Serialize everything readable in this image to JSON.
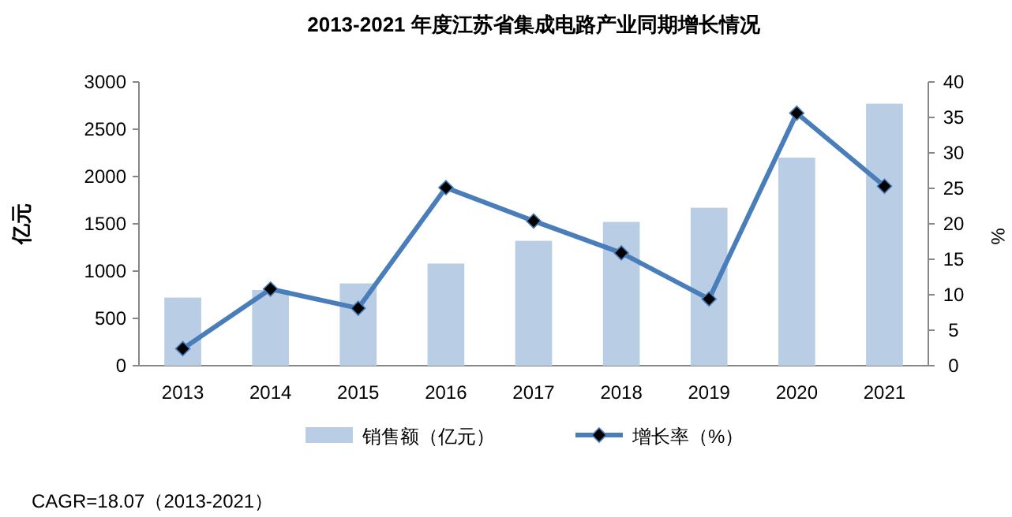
{
  "chart_data": {
    "type": "bar",
    "title": "2013-2021 年度江苏省集成电路产业同期增长情况",
    "categories": [
      "2013",
      "2014",
      "2015",
      "2016",
      "2017",
      "2018",
      "2019",
      "2020",
      "2021"
    ],
    "series": [
      {
        "name": "销售额（亿元）",
        "color": "#b9cde5",
        "values": [
          720,
          800,
          870,
          1080,
          1320,
          1520,
          1670,
          2200,
          2770
        ]
      },
      {
        "name": "增长率（%）",
        "type": "line",
        "axis": "y2",
        "color": "#4a7ebb",
        "marker": "diamond",
        "values": [
          2.4,
          10.8,
          8.1,
          25.1,
          20.4,
          15.9,
          9.4,
          35.6,
          25.3
        ]
      }
    ],
    "ylabel": "亿元",
    "y2label": "%",
    "ylim": [
      0,
      3000
    ],
    "yticks": [
      0,
      500,
      1000,
      1500,
      2000,
      2500,
      3000
    ],
    "y2lim": [
      0,
      40
    ],
    "y2ticks": [
      0,
      5,
      10,
      15,
      20,
      25,
      30,
      35,
      40
    ],
    "legend": "bottom",
    "grid": false,
    "annotations": [
      "CAGR=18.07（2013-2021）"
    ]
  }
}
